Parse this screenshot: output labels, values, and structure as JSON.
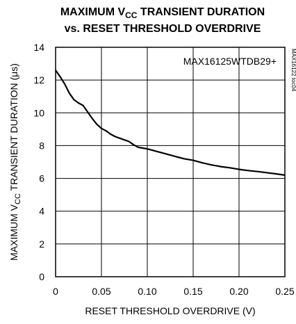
{
  "chart_data": {
    "type": "line",
    "title": [
      "MAXIMUM V",
      "CC",
      " TRANSIENT DURATION"
    ],
    "subtitle": "vs. RESET THRESHOLD OVERDRIVE",
    "xlabel": "RESET THRESHOLD OVERDRIVE (V)",
    "ylabel": [
      "MAXIMUM V",
      "CC",
      " TRANSIENT DURATION (μs)"
    ],
    "xlim": [
      0,
      0.25
    ],
    "ylim": [
      0,
      14
    ],
    "xticks": [
      "0",
      "0.05",
      "0.10",
      "0.15",
      "0.20",
      "0.25"
    ],
    "yticks": [
      "0",
      "2",
      "4",
      "6",
      "8",
      "10",
      "12",
      "14"
    ],
    "grid": true,
    "annotation": "MAX16125WTDB29+",
    "figure_code": "MAX16122 toc04",
    "series": [
      {
        "x": [
          0,
          0.005,
          0.01,
          0.015,
          0.02,
          0.025,
          0.03,
          0.035,
          0.04,
          0.045,
          0.05,
          0.055,
          0.06,
          0.065,
          0.07,
          0.075,
          0.08,
          0.085,
          0.09,
          0.095,
          0.1,
          0.11,
          0.12,
          0.13,
          0.14,
          0.15,
          0.16,
          0.17,
          0.18,
          0.19,
          0.2,
          0.21,
          0.22,
          0.23,
          0.24,
          0.25
        ],
        "y": [
          12.6,
          12.2,
          11.75,
          11.2,
          10.8,
          10.6,
          10.45,
          10.05,
          9.65,
          9.3,
          9.05,
          8.9,
          8.7,
          8.55,
          8.45,
          8.35,
          8.25,
          8.05,
          7.9,
          7.85,
          7.8,
          7.65,
          7.5,
          7.35,
          7.2,
          7.1,
          6.95,
          6.82,
          6.72,
          6.65,
          6.55,
          6.48,
          6.42,
          6.35,
          6.28,
          6.2
        ]
      }
    ]
  }
}
